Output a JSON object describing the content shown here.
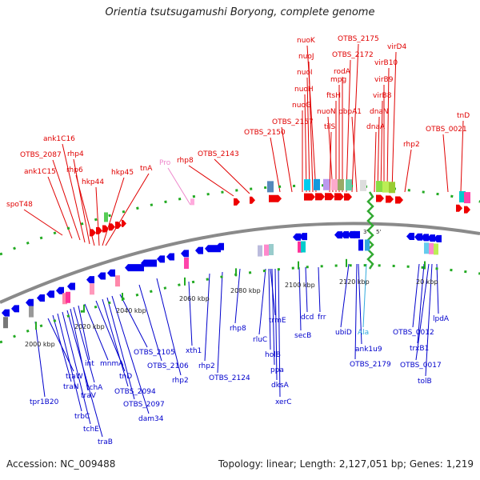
{
  "title": "Orientia tsutsugamushi Boryong, complete genome",
  "footer": {
    "accession": "Accession: NC_009488",
    "topology": "Topology: linear; Length: 2,127,051 bp; Genes: 1,219"
  },
  "colors": {
    "forward_label": "#e00000",
    "reverse_label": "#0000cc",
    "rna_label": "#ee88cc",
    "trna_label": "#33aadd",
    "backbone": "#8a8a8a",
    "ruler": "#22aa22",
    "origin": "#33aa33"
  },
  "ruler_ticks": [
    "2000 kbp",
    "2020 kbp",
    "2040 kbp",
    "2060 kbp",
    "2080 kbp",
    "2100 kbp",
    "2120 kbp",
    "20 kbp"
  ],
  "origin_marks": [
    "3'",
    "5'"
  ],
  "forward_labels": [
    "spoT48",
    "ank1C15",
    "OTBS_2087",
    "ank1C16",
    "rhp4",
    "rhp6",
    "hkp44",
    "hkp45",
    "tnA",
    "rhp8",
    "OTBS_2143",
    "OTBS_2150",
    "OTBS_2157",
    "nuoG",
    "nuoH",
    "nuoI",
    "nuoJ",
    "nuoK",
    "tilS",
    "nuoN",
    "ftsH",
    "mpg",
    "rodA",
    "OTBS_2172",
    "OTBS_2175",
    "pbpA1",
    "dnaA",
    "dnaN",
    "virB8",
    "virB9",
    "virB10",
    "virD4",
    "rhp2",
    "OTBS_0021",
    "tnD"
  ],
  "rna_labels": [
    "Pro"
  ],
  "reverse_labels": [
    "tpr1B20",
    "traW",
    "traN",
    "trbC",
    "tchE",
    "traB",
    "traV",
    "tchA",
    "int",
    "mnmA",
    "tnD",
    "OTBS_2094",
    "OTBS_2097",
    "dam34",
    "OTBS_2105",
    "OTBS_2106",
    "rhp2",
    "xth1",
    "rhp2",
    "OTBS_2124",
    "rhp8",
    "rluC",
    "holB",
    "ppa",
    "dksA",
    "xerC",
    "trmE",
    "secB",
    "dcd",
    "frr",
    "ubiD",
    "ank1u9",
    "OTBS_2179",
    "OTBS_0012",
    "trxB1",
    "OTBS_0017",
    "tolB",
    "lpdA"
  ],
  "trna_labels": [
    "Ala"
  ]
}
